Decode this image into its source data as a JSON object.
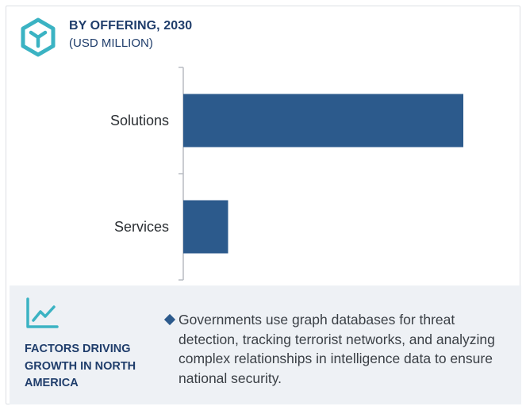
{
  "header": {
    "logo_icon": "hexagon-cube-icon",
    "title": "BY OFFERING, 2030",
    "subtitle": "(USD MILLION)"
  },
  "chart_data": {
    "type": "bar",
    "orientation": "horizontal",
    "title": "BY OFFERING, 2030",
    "subtitle": "(USD MILLION)",
    "categories": [
      "Solutions",
      "Services"
    ],
    "values": [
      100,
      16
    ],
    "xlabel": "",
    "ylabel": "",
    "xlim": [
      0,
      100
    ],
    "grid": false,
    "legend": "none",
    "bar_color": "#2c5a8c",
    "axis_color": "#b8bcc2"
  },
  "footer": {
    "icon": "trend-line-icon",
    "title": "FACTORS DRIVING GROWTH IN NORTH AMERICA",
    "bullets": [
      "Governments use graph databases for threat detection, tracking terrorist networks, and analyzing complex relationships in intelligence data to ensure national security."
    ]
  }
}
